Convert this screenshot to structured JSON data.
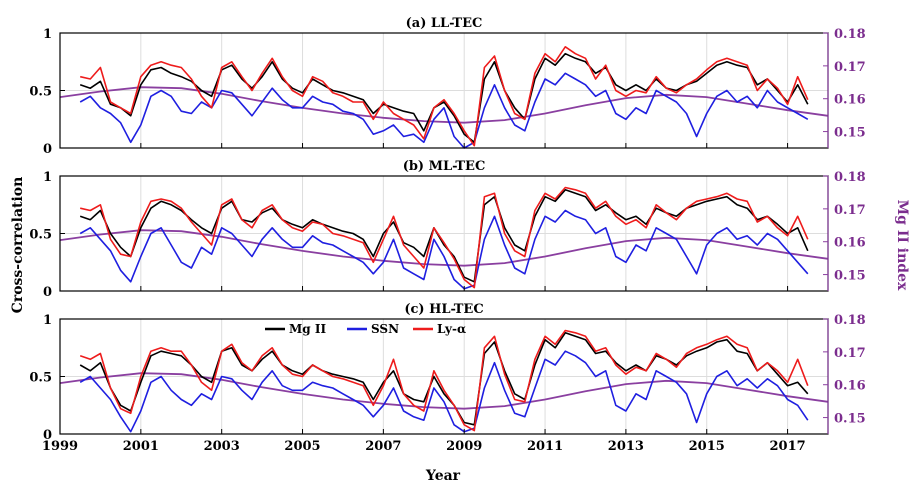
{
  "chart_data": {
    "type": "line",
    "shared": {
      "xlabel": "Year",
      "ylabel": "Cross-correlation",
      "y2label": "Mg II index",
      "xlim": [
        1999,
        2018
      ],
      "ylim": [
        0,
        1
      ],
      "y2lim": [
        0.145,
        0.18
      ],
      "xticks": [
        1999,
        2001,
        2003,
        2005,
        2007,
        2009,
        2011,
        2013,
        2015,
        2017
      ],
      "yticks": [
        0,
        0.5,
        1
      ],
      "ytick_labels": [
        "0",
        "0.5",
        "1"
      ],
      "y2ticks": [
        0.15,
        0.16,
        0.17,
        0.18
      ],
      "y2tick_labels": [
        "0.15",
        "0.16",
        "0.17",
        "0.18"
      ],
      "grid": true,
      "legend": {
        "placement": "top-center (panel c)",
        "entries": [
          {
            "label": "Mg II",
            "color": "#000000"
          },
          {
            "label": "SSN",
            "color": "#1f1fe0"
          },
          {
            "label": "Ly-α",
            "color": "#ee1c1c"
          }
        ]
      },
      "colors": {
        "mg2": "#000000",
        "ssn": "#1f1fe0",
        "lya": "#ee1c1c",
        "index": "#8a3fa0"
      },
      "x": [
        1999.5,
        1999.75,
        2000.0,
        2000.25,
        2000.5,
        2000.75,
        2001.0,
        2001.25,
        2001.5,
        2001.75,
        2002.0,
        2002.25,
        2002.5,
        2002.75,
        2003.0,
        2003.25,
        2003.5,
        2003.75,
        2004.0,
        2004.25,
        2004.5,
        2004.75,
        2005.0,
        2005.25,
        2005.5,
        2005.75,
        2006.0,
        2006.25,
        2006.5,
        2006.75,
        2007.0,
        2007.25,
        2007.5,
        2007.75,
        2008.0,
        2008.25,
        2008.5,
        2008.75,
        2009.0,
        2009.25,
        2009.5,
        2009.75,
        2010.0,
        2010.25,
        2010.5,
        2010.75,
        2011.0,
        2011.25,
        2011.5,
        2011.75,
        2012.0,
        2012.25,
        2012.5,
        2012.75,
        2013.0,
        2013.25,
        2013.5,
        2013.75,
        2014.0,
        2014.25,
        2014.5,
        2014.75,
        2015.0,
        2015.25,
        2015.5,
        2015.75,
        2016.0,
        2016.25,
        2016.5,
        2016.75,
        2017.0,
        2017.25,
        2017.5
      ],
      "index_x": [
        1999,
        2000,
        2001,
        2002,
        2003,
        2004,
        2005,
        2006,
        2007,
        2008,
        2009,
        2010,
        2011,
        2012,
        2013,
        2014,
        2015,
        2016,
        2017,
        2018
      ],
      "index_values": [
        0.1605,
        0.1622,
        0.1635,
        0.1632,
        0.1615,
        0.1592,
        0.1572,
        0.1555,
        0.1542,
        0.1532,
        0.1527,
        0.1535,
        0.1555,
        0.158,
        0.1602,
        0.1612,
        0.1605,
        0.1585,
        0.1565,
        0.1548
      ]
    },
    "panels": [
      {
        "title": "(a) LL-TEC",
        "series": [
          {
            "name": "Mg II",
            "values": [
              0.55,
              0.52,
              0.58,
              0.38,
              0.35,
              0.28,
              0.55,
              0.68,
              0.7,
              0.65,
              0.62,
              0.58,
              0.5,
              0.45,
              0.68,
              0.72,
              0.6,
              0.52,
              0.62,
              0.75,
              0.6,
              0.52,
              0.48,
              0.6,
              0.55,
              0.5,
              0.48,
              0.45,
              0.42,
              0.3,
              0.38,
              0.35,
              0.32,
              0.3,
              0.15,
              0.35,
              0.4,
              0.28,
              0.12,
              0.05,
              0.6,
              0.75,
              0.5,
              0.35,
              0.25,
              0.6,
              0.78,
              0.72,
              0.82,
              0.78,
              0.75,
              0.65,
              0.7,
              0.55,
              0.5,
              0.55,
              0.5,
              0.6,
              0.52,
              0.5,
              0.55,
              0.58,
              0.65,
              0.72,
              0.75,
              0.72,
              0.7,
              0.55,
              0.6,
              0.5,
              0.4,
              0.55,
              0.38
            ]
          },
          {
            "name": "SSN",
            "values": [
              0.4,
              0.45,
              0.35,
              0.3,
              0.22,
              0.05,
              0.2,
              0.45,
              0.5,
              0.45,
              0.32,
              0.3,
              0.4,
              0.35,
              0.5,
              0.48,
              0.38,
              0.28,
              0.4,
              0.52,
              0.42,
              0.35,
              0.35,
              0.45,
              0.4,
              0.38,
              0.32,
              0.3,
              0.25,
              0.12,
              0.15,
              0.2,
              0.1,
              0.12,
              0.05,
              0.25,
              0.35,
              0.1,
              0.0,
              0.05,
              0.35,
              0.55,
              0.35,
              0.2,
              0.15,
              0.4,
              0.6,
              0.55,
              0.65,
              0.6,
              0.55,
              0.45,
              0.5,
              0.3,
              0.25,
              0.35,
              0.3,
              0.5,
              0.45,
              0.4,
              0.3,
              0.1,
              0.3,
              0.45,
              0.5,
              0.4,
              0.45,
              0.35,
              0.5,
              0.4,
              0.35,
              0.3,
              0.25
            ]
          },
          {
            "name": "Ly-α",
            "values": [
              0.62,
              0.6,
              0.7,
              0.4,
              0.35,
              0.3,
              0.62,
              0.72,
              0.75,
              0.72,
              0.7,
              0.6,
              0.45,
              0.35,
              0.7,
              0.75,
              0.62,
              0.5,
              0.65,
              0.78,
              0.62,
              0.5,
              0.45,
              0.62,
              0.58,
              0.48,
              0.45,
              0.4,
              0.4,
              0.25,
              0.4,
              0.3,
              0.25,
              0.2,
              0.08,
              0.35,
              0.42,
              0.3,
              0.15,
              0.02,
              0.7,
              0.8,
              0.5,
              0.3,
              0.25,
              0.65,
              0.82,
              0.75,
              0.88,
              0.82,
              0.78,
              0.6,
              0.72,
              0.5,
              0.45,
              0.5,
              0.48,
              0.62,
              0.52,
              0.48,
              0.55,
              0.6,
              0.68,
              0.75,
              0.78,
              0.75,
              0.72,
              0.5,
              0.6,
              0.52,
              0.38,
              0.62,
              0.42
            ]
          }
        ]
      },
      {
        "title": "(b) ML-TEC",
        "series": [
          {
            "name": "Mg II",
            "values": [
              0.65,
              0.62,
              0.7,
              0.5,
              0.38,
              0.3,
              0.55,
              0.72,
              0.78,
              0.75,
              0.7,
              0.62,
              0.55,
              0.5,
              0.72,
              0.78,
              0.62,
              0.6,
              0.68,
              0.72,
              0.62,
              0.58,
              0.55,
              0.62,
              0.58,
              0.55,
              0.52,
              0.5,
              0.45,
              0.3,
              0.5,
              0.6,
              0.42,
              0.38,
              0.3,
              0.55,
              0.4,
              0.3,
              0.12,
              0.08,
              0.75,
              0.82,
              0.55,
              0.4,
              0.35,
              0.65,
              0.82,
              0.78,
              0.88,
              0.85,
              0.82,
              0.7,
              0.75,
              0.68,
              0.62,
              0.65,
              0.58,
              0.72,
              0.68,
              0.65,
              0.72,
              0.75,
              0.78,
              0.8,
              0.82,
              0.75,
              0.72,
              0.62,
              0.65,
              0.58,
              0.5,
              0.55,
              0.35
            ]
          },
          {
            "name": "SSN",
            "values": [
              0.5,
              0.55,
              0.45,
              0.35,
              0.18,
              0.08,
              0.3,
              0.5,
              0.55,
              0.4,
              0.25,
              0.2,
              0.38,
              0.32,
              0.55,
              0.5,
              0.4,
              0.3,
              0.45,
              0.55,
              0.45,
              0.38,
              0.38,
              0.48,
              0.42,
              0.4,
              0.35,
              0.3,
              0.25,
              0.15,
              0.25,
              0.45,
              0.2,
              0.15,
              0.1,
              0.45,
              0.3,
              0.1,
              0.02,
              0.05,
              0.45,
              0.65,
              0.4,
              0.2,
              0.15,
              0.45,
              0.65,
              0.6,
              0.7,
              0.65,
              0.62,
              0.5,
              0.55,
              0.3,
              0.25,
              0.4,
              0.35,
              0.55,
              0.5,
              0.45,
              0.3,
              0.15,
              0.4,
              0.5,
              0.55,
              0.45,
              0.48,
              0.4,
              0.5,
              0.45,
              0.35,
              0.25,
              0.15
            ]
          },
          {
            "name": "Ly-α",
            "values": [
              0.72,
              0.7,
              0.75,
              0.45,
              0.32,
              0.3,
              0.6,
              0.78,
              0.8,
              0.78,
              0.72,
              0.6,
              0.5,
              0.4,
              0.75,
              0.8,
              0.62,
              0.55,
              0.7,
              0.75,
              0.62,
              0.55,
              0.52,
              0.6,
              0.58,
              0.5,
              0.48,
              0.45,
              0.42,
              0.25,
              0.45,
              0.65,
              0.4,
              0.3,
              0.2,
              0.55,
              0.42,
              0.28,
              0.1,
              0.03,
              0.82,
              0.85,
              0.5,
              0.35,
              0.3,
              0.7,
              0.85,
              0.8,
              0.9,
              0.88,
              0.85,
              0.72,
              0.78,
              0.65,
              0.58,
              0.62,
              0.55,
              0.75,
              0.68,
              0.62,
              0.72,
              0.78,
              0.8,
              0.82,
              0.85,
              0.8,
              0.78,
              0.6,
              0.65,
              0.55,
              0.48,
              0.65,
              0.45
            ]
          }
        ]
      },
      {
        "title": "(c) HL-TEC",
        "series": [
          {
            "name": "Mg II",
            "values": [
              0.6,
              0.55,
              0.62,
              0.4,
              0.25,
              0.2,
              0.45,
              0.68,
              0.72,
              0.7,
              0.68,
              0.6,
              0.5,
              0.45,
              0.72,
              0.75,
              0.6,
              0.55,
              0.65,
              0.72,
              0.6,
              0.55,
              0.52,
              0.6,
              0.55,
              0.52,
              0.5,
              0.48,
              0.45,
              0.3,
              0.45,
              0.55,
              0.35,
              0.3,
              0.28,
              0.5,
              0.35,
              0.25,
              0.1,
              0.08,
              0.7,
              0.8,
              0.55,
              0.35,
              0.3,
              0.6,
              0.82,
              0.75,
              0.88,
              0.85,
              0.82,
              0.7,
              0.72,
              0.62,
              0.55,
              0.6,
              0.55,
              0.68,
              0.65,
              0.6,
              0.68,
              0.72,
              0.75,
              0.8,
              0.82,
              0.72,
              0.7,
              0.55,
              0.62,
              0.52,
              0.42,
              0.45,
              0.35
            ]
          },
          {
            "name": "SSN",
            "values": [
              0.45,
              0.5,
              0.4,
              0.3,
              0.15,
              0.02,
              0.2,
              0.45,
              0.5,
              0.38,
              0.3,
              0.25,
              0.35,
              0.3,
              0.5,
              0.48,
              0.38,
              0.3,
              0.45,
              0.55,
              0.42,
              0.38,
              0.38,
              0.45,
              0.42,
              0.4,
              0.35,
              0.3,
              0.25,
              0.15,
              0.25,
              0.4,
              0.2,
              0.15,
              0.12,
              0.4,
              0.28,
              0.08,
              0.02,
              0.05,
              0.4,
              0.62,
              0.38,
              0.18,
              0.15,
              0.4,
              0.65,
              0.6,
              0.72,
              0.68,
              0.62,
              0.5,
              0.55,
              0.25,
              0.2,
              0.35,
              0.3,
              0.55,
              0.5,
              0.45,
              0.35,
              0.1,
              0.35,
              0.5,
              0.55,
              0.42,
              0.48,
              0.4,
              0.48,
              0.42,
              0.3,
              0.25,
              0.12
            ]
          },
          {
            "name": "Ly-α",
            "values": [
              0.68,
              0.65,
              0.7,
              0.4,
              0.22,
              0.18,
              0.5,
              0.72,
              0.75,
              0.72,
              0.72,
              0.6,
              0.45,
              0.38,
              0.72,
              0.78,
              0.62,
              0.55,
              0.68,
              0.75,
              0.6,
              0.52,
              0.5,
              0.6,
              0.55,
              0.5,
              0.48,
              0.45,
              0.42,
              0.25,
              0.42,
              0.65,
              0.35,
              0.25,
              0.2,
              0.55,
              0.38,
              0.25,
              0.08,
              0.03,
              0.75,
              0.85,
              0.52,
              0.3,
              0.28,
              0.65,
              0.85,
              0.78,
              0.9,
              0.88,
              0.85,
              0.72,
              0.75,
              0.6,
              0.52,
              0.58,
              0.55,
              0.7,
              0.65,
              0.58,
              0.7,
              0.75,
              0.78,
              0.82,
              0.85,
              0.78,
              0.75,
              0.55,
              0.62,
              0.55,
              0.45,
              0.65,
              0.42
            ]
          }
        ]
      }
    ]
  }
}
